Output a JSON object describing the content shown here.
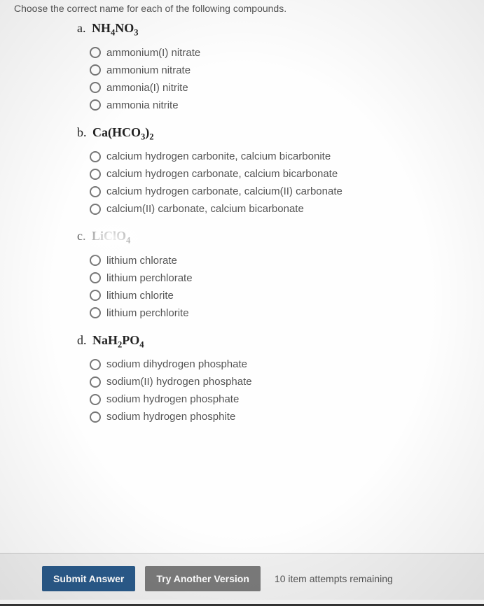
{
  "instruction": "Choose the correct name for each of the following compounds.",
  "questions": [
    {
      "letter": "a.",
      "formula_html": "NH<sub>4</sub>NO<sub>3</sub>",
      "options": [
        "ammonium(I) nitrate",
        "ammonium nitrate",
        "ammonia(I) nitrite",
        "ammonia nitrite"
      ]
    },
    {
      "letter": "b.",
      "formula_html": "Ca(HCO<sub>3</sub>)<sub>2</sub>",
      "options": [
        "calcium hydrogen carbonite, calcium bicarbonite",
        "calcium hydrogen carbonate, calcium bicarbonate",
        "calcium hydrogen carbonate, calcium(II) carbonate",
        "calcium(II) carbonate, calcium bicarbonate"
      ]
    },
    {
      "letter": "c.",
      "formula_html": "LiClO<sub>4</sub>",
      "options": [
        "lithium chlorate",
        "lithium perchlorate",
        "lithium chlorite",
        "lithium perchlorite"
      ]
    },
    {
      "letter": "d.",
      "formula_html": "NaH<sub>2</sub>PO<sub>4</sub>",
      "options": [
        "sodium dihydrogen phosphate",
        "sodium(II) hydrogen phosphate",
        "sodium hydrogen phosphate",
        "sodium hydrogen phosphite"
      ]
    }
  ],
  "footer": {
    "submit": "Submit Answer",
    "try_another": "Try Another Version",
    "attempts": "10 item attempts remaining"
  },
  "colors": {
    "page_bg": "#fefefe",
    "text_formula": "#222222",
    "text_option": "#555555",
    "radio_border": "#777777",
    "btn_primary_bg": "#2a5a8a",
    "btn_secondary_bg": "#7a7a7a",
    "footer_border": "#333333"
  }
}
